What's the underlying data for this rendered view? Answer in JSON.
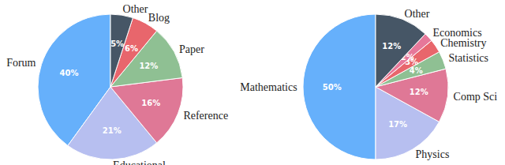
{
  "chart_data": [
    {
      "type": "pie",
      "categories": [
        "Forum",
        "Educational",
        "Reference",
        "Paper",
        "Blog",
        "Other"
      ],
      "values": [
        40,
        21,
        16,
        12,
        6,
        5
      ],
      "value_labels": [
        "40%",
        "21%",
        "16%",
        "12%",
        "6%",
        "5%"
      ],
      "colors": [
        "#66b0fb",
        "#b7bff0",
        "#df7896",
        "#8fc093",
        "#e8666c",
        "#465666"
      ],
      "data_labels": true
    },
    {
      "type": "pie",
      "categories": [
        "Mathematics",
        "Physics",
        "Comp Sci",
        "Statistics",
        "Chemistry",
        "Economics",
        "Other"
      ],
      "values": [
        50,
        17,
        12,
        4,
        3,
        2,
        12
      ],
      "value_labels": [
        "50%",
        "17%",
        "12%",
        "4%",
        "3%",
        "2%",
        "12%"
      ],
      "colors": [
        "#66b0fb",
        "#b7bff0",
        "#df7896",
        "#8fc093",
        "#e8666c",
        "#e6789a",
        "#465666"
      ],
      "data_labels": true
    }
  ]
}
